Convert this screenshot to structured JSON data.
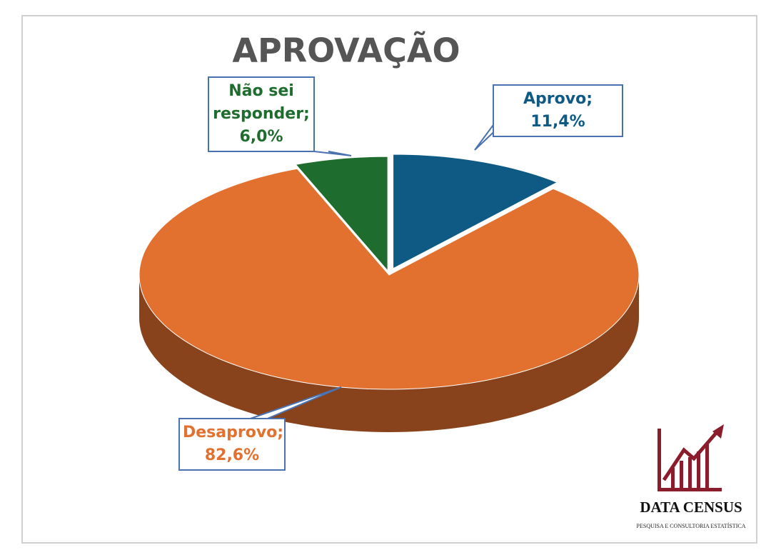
{
  "chart_data": {
    "type": "pie",
    "title": "APROVAÇÃO",
    "categories": [
      "Aprovo",
      "Desaprovo",
      "Não sei responder"
    ],
    "values": [
      11.4,
      82.6,
      6.0
    ],
    "value_labels": [
      "Aprovo; 11,4%",
      "Desaprovo; 82,6%",
      "Não sei responder; 6,0%"
    ],
    "colors": [
      "#0f5a84",
      "#e2702f",
      "#1f6d2e"
    ]
  },
  "logo": {
    "name": "DATA CENSUS",
    "tagline": "PESQUISA E CONSULTORIA ESTATÍSTICA"
  }
}
